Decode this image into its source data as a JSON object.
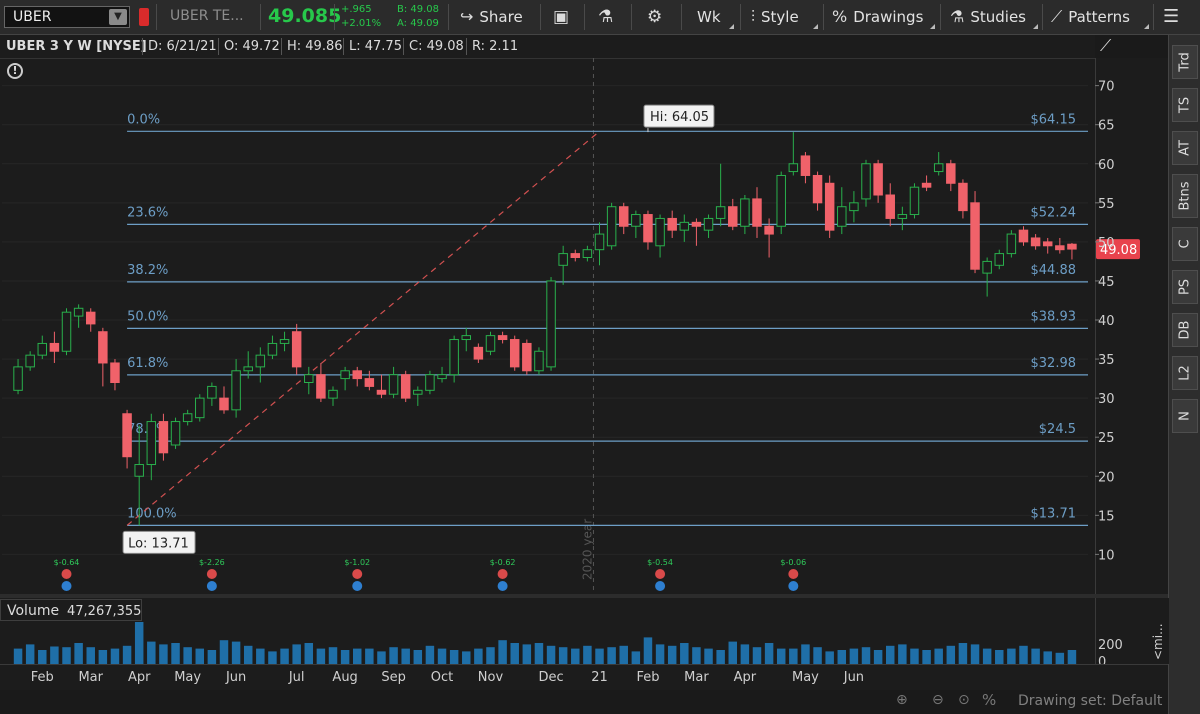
{
  "toolbar": {
    "symbol": "UBER",
    "name": "UBER TE...",
    "last": "49.085",
    "change": "+.965",
    "change_pct": "+2.01%",
    "bid": "B: 49.08",
    "ask": "A: 49.09",
    "share_label": "Share",
    "period_label": "Wk",
    "style_label": "Style",
    "drawings_label": "Drawings",
    "studies_label": "Studies",
    "patterns_label": "Patterns"
  },
  "info": {
    "title": "UBER 3 Y W [NYSE]",
    "date": "D: 6/21/21",
    "open": "O: 49.72",
    "high": "H: 49.86",
    "low": "L: 47.75",
    "close": "C: 49.08",
    "range": "R: 2.11"
  },
  "side_tabs": [
    "Trd",
    "TS",
    "AT",
    "Btns",
    "C",
    "PS",
    "DB",
    "L2",
    "N"
  ],
  "volume": {
    "label": "Volume",
    "value": "47,267,355",
    "axis_tick": "200",
    "axis_tick0": "0",
    "mi": "<mi..."
  },
  "drawing_set": "Drawing set: Default",
  "colors": {
    "up": "#29b04c",
    "down": "#f0626a",
    "fib": "#6d9ec6",
    "trend": "#d05050",
    "price_tag": "#e8434d"
  },
  "chart_data": {
    "type": "candlestick",
    "title": "UBER 3 Y W [NYSE]",
    "ylim": [
      8,
      72
    ],
    "y_ticks": [
      10,
      15,
      20,
      25,
      30,
      35,
      40,
      45,
      50,
      55,
      60,
      65,
      70
    ],
    "x_labels": [
      {
        "label": "Feb",
        "i": 2
      },
      {
        "label": "Mar",
        "i": 6
      },
      {
        "label": "Apr",
        "i": 10
      },
      {
        "label": "May",
        "i": 14
      },
      {
        "label": "Jun",
        "i": 18
      },
      {
        "label": "Jul",
        "i": 23
      },
      {
        "label": "Aug",
        "i": 27
      },
      {
        "label": "Sep",
        "i": 31
      },
      {
        "label": "Oct",
        "i": 35
      },
      {
        "label": "Nov",
        "i": 39
      },
      {
        "label": "Dec",
        "i": 44
      },
      {
        "label": "21",
        "i": 48
      },
      {
        "label": "Feb",
        "i": 52
      },
      {
        "label": "Mar",
        "i": 56
      },
      {
        "label": "Apr",
        "i": 60
      },
      {
        "label": "May",
        "i": 65
      },
      {
        "label": "Jun",
        "i": 69
      }
    ],
    "year_marker": {
      "label": "2020 year",
      "i": 47.5
    },
    "last_price": "49.08",
    "last_price_value": 49.08,
    "hi_label": "Hi: 64.05",
    "hi_value": 64.05,
    "hi_index": 52,
    "lo_label": "Lo: 13.71",
    "lo_value": 13.71,
    "lo_index": 9,
    "fib_levels": [
      {
        "pct": "0.0%",
        "price": "$64.15",
        "value": 64.15
      },
      {
        "pct": "23.6%",
        "price": "$52.24",
        "value": 52.24
      },
      {
        "pct": "38.2%",
        "price": "$44.88",
        "value": 44.88
      },
      {
        "pct": "50.0%",
        "price": "$38.93",
        "value": 38.93
      },
      {
        "pct": "61.8%",
        "price": "$32.98",
        "value": 32.98
      },
      {
        "pct": "78.6%",
        "price": "$24.5",
        "value": 24.5
      },
      {
        "pct": "100.0%",
        "price": "$13.71",
        "value": 13.71
      }
    ],
    "trend_line": {
      "from": [
        9,
        13.71
      ],
      "to": [
        48,
        64.15
      ]
    },
    "earnings": [
      {
        "i": 4,
        "label": "$-0.64"
      },
      {
        "i": 16,
        "label": "$-2.26"
      },
      {
        "i": 28,
        "label": "$-1.02"
      },
      {
        "i": 40,
        "label": "$-0.62"
      },
      {
        "i": 53,
        "label": "$-0.54"
      },
      {
        "i": 64,
        "label": "$-0.06"
      }
    ],
    "candles": [
      {
        "o": 31.0,
        "h": 35.0,
        "l": 30.5,
        "c": 34.0
      },
      {
        "o": 34.0,
        "h": 36.0,
        "l": 33.5,
        "c": 35.5
      },
      {
        "o": 35.5,
        "h": 38.0,
        "l": 35.0,
        "c": 37.0
      },
      {
        "o": 37.0,
        "h": 38.5,
        "l": 34.5,
        "c": 36.0
      },
      {
        "o": 36.0,
        "h": 41.5,
        "l": 35.5,
        "c": 41.0
      },
      {
        "o": 40.5,
        "h": 42.0,
        "l": 39.0,
        "c": 41.5
      },
      {
        "o": 41.0,
        "h": 41.5,
        "l": 38.5,
        "c": 39.5
      },
      {
        "o": 38.5,
        "h": 39.0,
        "l": 31.5,
        "c": 34.5
      },
      {
        "o": 34.5,
        "h": 35.0,
        "l": 31.0,
        "c": 32.0
      },
      {
        "o": 28.0,
        "h": 28.5,
        "l": 21.0,
        "c": 22.5
      },
      {
        "o": 20.0,
        "h": 26.5,
        "l": 13.7,
        "c": 21.5
      },
      {
        "o": 21.5,
        "h": 28.0,
        "l": 19.5,
        "c": 27.0
      },
      {
        "o": 27.0,
        "h": 28.0,
        "l": 22.0,
        "c": 23.0
      },
      {
        "o": 24.0,
        "h": 27.5,
        "l": 23.5,
        "c": 27.0
      },
      {
        "o": 27.0,
        "h": 28.5,
        "l": 26.5,
        "c": 28.0
      },
      {
        "o": 27.5,
        "h": 30.5,
        "l": 27.0,
        "c": 30.0
      },
      {
        "o": 30.0,
        "h": 32.0,
        "l": 29.0,
        "c": 31.5
      },
      {
        "o": 30.0,
        "h": 31.5,
        "l": 28.0,
        "c": 28.5
      },
      {
        "o": 28.5,
        "h": 35.0,
        "l": 27.5,
        "c": 33.5
      },
      {
        "o": 33.5,
        "h": 36.0,
        "l": 32.5,
        "c": 34.0
      },
      {
        "o": 34.0,
        "h": 36.5,
        "l": 32.0,
        "c": 35.5
      },
      {
        "o": 35.5,
        "h": 38.0,
        "l": 35.0,
        "c": 37.0
      },
      {
        "o": 37.0,
        "h": 38.5,
        "l": 36.0,
        "c": 37.5
      },
      {
        "o": 38.5,
        "h": 39.5,
        "l": 33.0,
        "c": 34.0
      },
      {
        "o": 32.0,
        "h": 34.0,
        "l": 30.5,
        "c": 33.0
      },
      {
        "o": 33.0,
        "h": 34.5,
        "l": 29.5,
        "c": 30.0
      },
      {
        "o": 30.0,
        "h": 31.5,
        "l": 29.0,
        "c": 31.0
      },
      {
        "o": 32.5,
        "h": 34.0,
        "l": 31.0,
        "c": 33.5
      },
      {
        "o": 33.5,
        "h": 34.0,
        "l": 31.5,
        "c": 32.5
      },
      {
        "o": 32.5,
        "h": 33.5,
        "l": 31.0,
        "c": 31.5
      },
      {
        "o": 31.0,
        "h": 33.0,
        "l": 30.0,
        "c": 30.5
      },
      {
        "o": 30.5,
        "h": 34.0,
        "l": 30.0,
        "c": 33.0
      },
      {
        "o": 33.0,
        "h": 33.5,
        "l": 29.5,
        "c": 30.0
      },
      {
        "o": 30.5,
        "h": 31.5,
        "l": 29.0,
        "c": 31.0
      },
      {
        "o": 31.0,
        "h": 33.5,
        "l": 30.5,
        "c": 33.0
      },
      {
        "o": 32.5,
        "h": 34.0,
        "l": 32.0,
        "c": 33.0
      },
      {
        "o": 33.0,
        "h": 38.0,
        "l": 32.0,
        "c": 37.5
      },
      {
        "o": 37.5,
        "h": 39.0,
        "l": 36.0,
        "c": 38.0
      },
      {
        "o": 36.5,
        "h": 37.0,
        "l": 34.5,
        "c": 35.0
      },
      {
        "o": 36.0,
        "h": 38.5,
        "l": 35.5,
        "c": 38.0
      },
      {
        "o": 38.0,
        "h": 38.5,
        "l": 37.0,
        "c": 37.5
      },
      {
        "o": 37.5,
        "h": 38.0,
        "l": 33.5,
        "c": 34.0
      },
      {
        "o": 37.0,
        "h": 37.5,
        "l": 33.0,
        "c": 33.5
      },
      {
        "o": 33.5,
        "h": 36.5,
        "l": 33.0,
        "c": 36.0
      },
      {
        "o": 34.0,
        "h": 45.5,
        "l": 33.5,
        "c": 45.0
      },
      {
        "o": 47.0,
        "h": 49.5,
        "l": 44.5,
        "c": 48.5
      },
      {
        "o": 48.5,
        "h": 49.0,
        "l": 47.5,
        "c": 48.0
      },
      {
        "o": 48.0,
        "h": 49.5,
        "l": 47.5,
        "c": 49.0
      },
      {
        "o": 49.0,
        "h": 52.5,
        "l": 47.0,
        "c": 51.0
      },
      {
        "o": 49.5,
        "h": 55.0,
        "l": 49.0,
        "c": 54.5
      },
      {
        "o": 54.5,
        "h": 55.0,
        "l": 51.0,
        "c": 52.0
      },
      {
        "o": 52.0,
        "h": 54.0,
        "l": 50.5,
        "c": 53.5
      },
      {
        "o": 53.5,
        "h": 54.0,
        "l": 49.0,
        "c": 50.0
      },
      {
        "o": 49.5,
        "h": 53.5,
        "l": 48.0,
        "c": 53.0
      },
      {
        "o": 53.0,
        "h": 54.0,
        "l": 50.5,
        "c": 51.5
      },
      {
        "o": 51.5,
        "h": 53.5,
        "l": 50.0,
        "c": 52.5
      },
      {
        "o": 52.5,
        "h": 53.0,
        "l": 49.5,
        "c": 52.0
      },
      {
        "o": 51.5,
        "h": 53.5,
        "l": 50.5,
        "c": 53.0
      },
      {
        "o": 53.0,
        "h": 60.0,
        "l": 52.0,
        "c": 54.5
      },
      {
        "o": 54.5,
        "h": 55.5,
        "l": 51.5,
        "c": 52.0
      },
      {
        "o": 52.0,
        "h": 56.0,
        "l": 51.0,
        "c": 55.5
      },
      {
        "o": 55.5,
        "h": 57.0,
        "l": 50.5,
        "c": 52.0
      },
      {
        "o": 52.0,
        "h": 53.0,
        "l": 48.0,
        "c": 51.0
      },
      {
        "o": 52.0,
        "h": 59.0,
        "l": 51.0,
        "c": 58.5
      },
      {
        "o": 59.0,
        "h": 64.05,
        "l": 58.5,
        "c": 60.0
      },
      {
        "o": 61.0,
        "h": 61.5,
        "l": 57.5,
        "c": 58.5
      },
      {
        "o": 58.5,
        "h": 59.0,
        "l": 54.0,
        "c": 55.0
      },
      {
        "o": 57.5,
        "h": 58.5,
        "l": 50.5,
        "c": 51.5
      },
      {
        "o": 52.0,
        "h": 57.0,
        "l": 51.0,
        "c": 54.5
      },
      {
        "o": 54.0,
        "h": 56.5,
        "l": 52.5,
        "c": 55.0
      },
      {
        "o": 55.5,
        "h": 60.5,
        "l": 54.5,
        "c": 60.0
      },
      {
        "o": 60.0,
        "h": 60.5,
        "l": 55.0,
        "c": 56.0
      },
      {
        "o": 56.0,
        "h": 57.5,
        "l": 52.0,
        "c": 53.0
      },
      {
        "o": 53.0,
        "h": 54.5,
        "l": 51.5,
        "c": 53.5
      },
      {
        "o": 53.5,
        "h": 57.5,
        "l": 53.0,
        "c": 57.0
      },
      {
        "o": 57.5,
        "h": 58.5,
        "l": 56.5,
        "c": 57.0
      },
      {
        "o": 59.0,
        "h": 61.5,
        "l": 58.5,
        "c": 60.0
      },
      {
        "o": 60.0,
        "h": 60.5,
        "l": 56.5,
        "c": 57.5
      },
      {
        "o": 57.5,
        "h": 58.0,
        "l": 53.0,
        "c": 54.0
      },
      {
        "o": 55.0,
        "h": 56.5,
        "l": 46.0,
        "c": 46.5
      },
      {
        "o": 46.0,
        "h": 48.0,
        "l": 43.0,
        "c": 47.5
      },
      {
        "o": 47.0,
        "h": 49.0,
        "l": 46.5,
        "c": 48.5
      },
      {
        "o": 48.5,
        "h": 51.5,
        "l": 48.0,
        "c": 51.0
      },
      {
        "o": 51.5,
        "h": 52.0,
        "l": 49.5,
        "c": 50.0
      },
      {
        "o": 50.5,
        "h": 51.0,
        "l": 49.0,
        "c": 49.5
      },
      {
        "o": 50.0,
        "h": 50.5,
        "l": 48.5,
        "c": 49.5
      },
      {
        "o": 49.5,
        "h": 50.5,
        "l": 48.5,
        "c": 49.0
      },
      {
        "o": 49.7,
        "h": 49.86,
        "l": 47.75,
        "c": 49.08
      }
    ],
    "volumes": [
      22,
      28,
      20,
      25,
      24,
      30,
      24,
      20,
      22,
      26,
      60,
      32,
      28,
      30,
      24,
      22,
      20,
      34,
      32,
      26,
      22,
      18,
      22,
      28,
      30,
      22,
      24,
      20,
      22,
      22,
      18,
      24,
      22,
      20,
      26,
      22,
      20,
      18,
      22,
      24,
      34,
      30,
      28,
      30,
      26,
      24,
      22,
      26,
      22,
      24,
      26,
      18,
      38,
      28,
      26,
      30,
      24,
      22,
      20,
      32,
      28,
      24,
      30,
      22,
      22,
      28,
      24,
      18,
      20,
      22,
      24,
      20,
      26,
      28,
      22,
      20,
      22,
      26,
      30,
      28,
      22,
      20,
      22,
      26,
      22,
      18,
      16,
      20
    ]
  }
}
